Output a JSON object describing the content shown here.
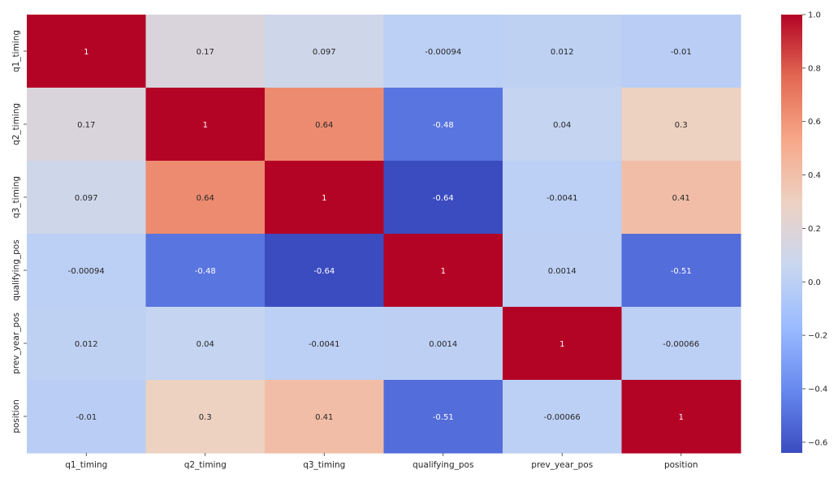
{
  "chart_data": {
    "type": "heatmap",
    "title": "",
    "xlabel": "",
    "ylabel": "",
    "x_labels": [
      "q1_timing",
      "q2_timing",
      "q3_timing",
      "qualifying_pos",
      "prev_year_pos",
      "position"
    ],
    "y_labels": [
      "q1_timing",
      "q2_timing",
      "q3_timing",
      "qualifying_pos",
      "prev_year_pos",
      "position"
    ],
    "values": [
      [
        1,
        0.17,
        0.097,
        -0.00094,
        0.012,
        -0.01
      ],
      [
        0.17,
        1,
        0.64,
        -0.48,
        0.04,
        0.3
      ],
      [
        0.097,
        0.64,
        1,
        -0.64,
        -0.0041,
        0.41
      ],
      [
        -0.00094,
        -0.48,
        -0.64,
        1,
        0.0014,
        -0.51
      ],
      [
        0.012,
        0.04,
        -0.0041,
        0.0014,
        1,
        -0.00066
      ],
      [
        -0.01,
        0.3,
        0.41,
        -0.51,
        -0.00066,
        1
      ]
    ],
    "value_labels": [
      [
        "1",
        "0.17",
        "0.097",
        "-0.00094",
        "0.012",
        "-0.01"
      ],
      [
        "0.17",
        "1",
        "0.64",
        "-0.48",
        "0.04",
        "0.3"
      ],
      [
        "0.097",
        "0.64",
        "1",
        "-0.64",
        "-0.0041",
        "0.41"
      ],
      [
        "-0.00094",
        "-0.48",
        "-0.64",
        "1",
        "0.0014",
        "-0.51"
      ],
      [
        "0.012",
        "0.04",
        "-0.0041",
        "0.0014",
        "1",
        "-0.00066"
      ],
      [
        "-0.01",
        "0.3",
        "0.41",
        "-0.51",
        "-0.00066",
        "1"
      ]
    ],
    "colormap": "coolwarm",
    "colormap_stops": [
      "#3b4cc0",
      "#6788ee",
      "#9abbff",
      "#c9d7f0",
      "#edd1c2",
      "#f7a889",
      "#e26952",
      "#b40426"
    ],
    "value_range": [
      -0.64,
      1
    ],
    "colorbar": {
      "ticks": [
        -0.6,
        -0.4,
        -0.2,
        0.0,
        0.2,
        0.4,
        0.6,
        0.8,
        1.0
      ],
      "tick_labels": [
        "−0.6",
        "−0.4",
        "−0.2",
        "0.0",
        "0.2",
        "0.4",
        "0.6",
        "0.8",
        "1.0"
      ]
    }
  }
}
